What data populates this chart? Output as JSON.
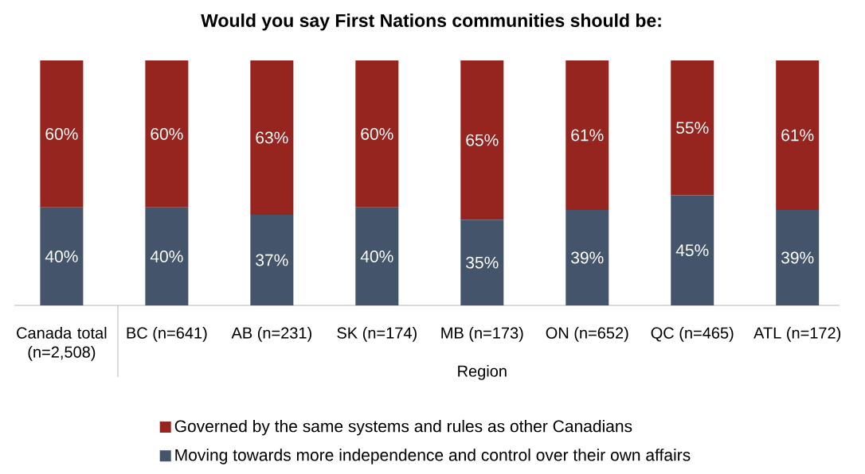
{
  "chart_data": {
    "type": "bar",
    "stacked": true,
    "title": "Would you say First Nations communities should be:",
    "categories": [
      "Canada total (n=2,508)",
      "BC (n=641)",
      "AB (n=231)",
      "SK (n=174)",
      "MB (n=173)",
      "ON (n=652)",
      "QC (n=465)",
      "ATL (n=172)"
    ],
    "series": [
      {
        "name": "Moving towards more independence and control over their own affairs",
        "color": "#44546a",
        "values": [
          40,
          40,
          37,
          40,
          35,
          39,
          45,
          39
        ],
        "value_labels": [
          "40%",
          "40%",
          "37%",
          "40%",
          "35%",
          "39%",
          "45%",
          "39%"
        ]
      },
      {
        "name": "Governed by the same systems and rules as other Canadians",
        "color": "#962520",
        "values": [
          60,
          60,
          63,
          60,
          65,
          61,
          55,
          61
        ],
        "value_labels": [
          "60%",
          "60%",
          "63%",
          "60%",
          "65%",
          "61%",
          "55%",
          "61%"
        ]
      }
    ],
    "annotations": [
      "Region"
    ],
    "legend": "bottom"
  }
}
